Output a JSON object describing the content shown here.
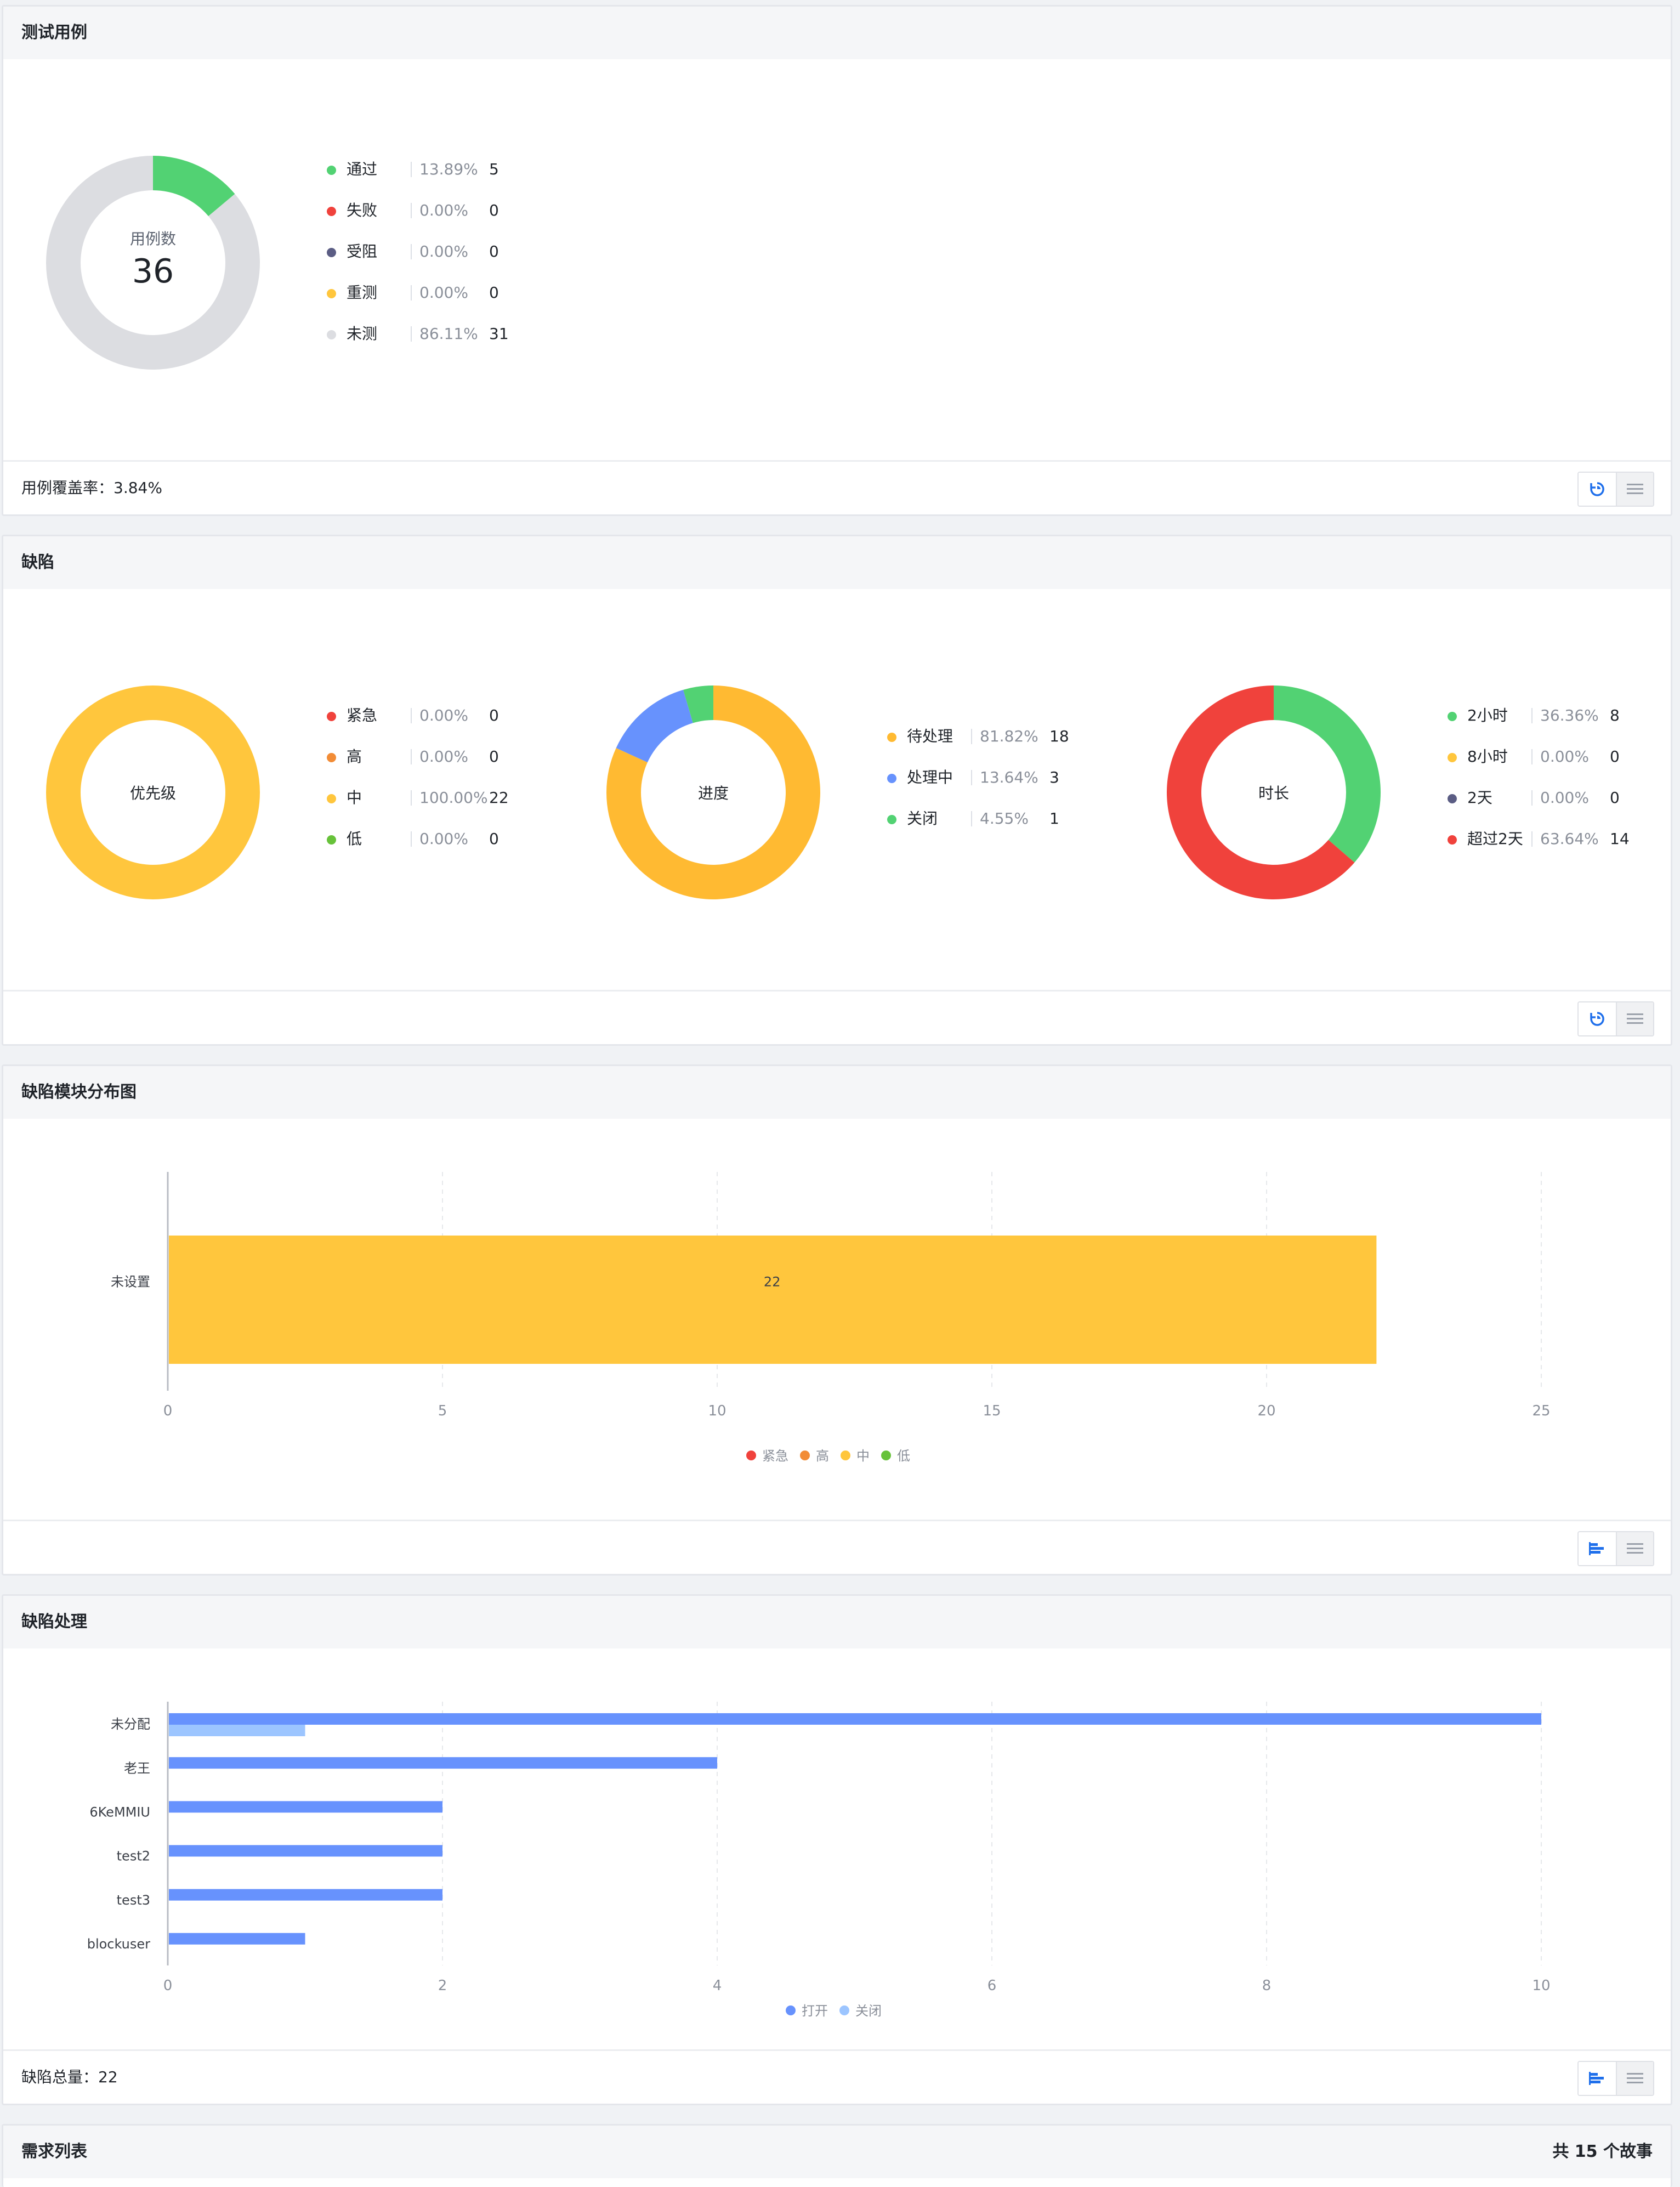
{
  "colors": {
    "green": "#52d273",
    "red": "#f0423c",
    "purple": "#5b5d84",
    "yellow": "#ffc63d",
    "grey": "#dcdde1",
    "orange": "#f28c36",
    "lime": "#67c23a",
    "blue": "#6792fd",
    "lightblue": "#9cc5ff",
    "accent": "#1f6feb"
  },
  "test_cases": {
    "title": "测试用例",
    "center_label": "用例数",
    "center_value": "36",
    "legend": [
      {
        "label": "通过",
        "pct": "13.89%",
        "count": "5",
        "color": "#52d273",
        "value": 5
      },
      {
        "label": "失败",
        "pct": "0.00%",
        "count": "0",
        "color": "#f0423c",
        "value": 0
      },
      {
        "label": "受阻",
        "pct": "0.00%",
        "count": "0",
        "color": "#5b5d84",
        "value": 0
      },
      {
        "label": "重测",
        "pct": "0.00%",
        "count": "0",
        "color": "#ffc63d",
        "value": 0
      },
      {
        "label": "未测",
        "pct": "86.11%",
        "count": "31",
        "color": "#dcdde1",
        "value": 31
      }
    ],
    "footer_text": "用例覆盖率：3.84%"
  },
  "defects": {
    "title": "缺陷",
    "priority": {
      "center_label": "优先级",
      "legend": [
        {
          "label": "紧急",
          "pct": "0.00%",
          "count": "0",
          "color": "#f0423c",
          "value": 0
        },
        {
          "label": "高",
          "pct": "0.00%",
          "count": "0",
          "color": "#f28c36",
          "value": 0
        },
        {
          "label": "中",
          "pct": "100.00%",
          "count": "22",
          "color": "#ffc63d",
          "value": 22
        },
        {
          "label": "低",
          "pct": "0.00%",
          "count": "0",
          "color": "#67c23a",
          "value": 0
        }
      ]
    },
    "progress": {
      "center_label": "进度",
      "legend": [
        {
          "label": "待处理",
          "pct": "81.82%",
          "count": "18",
          "color": "#ffba32",
          "value": 18
        },
        {
          "label": "处理中",
          "pct": "13.64%",
          "count": "3",
          "color": "#6792fd",
          "value": 3
        },
        {
          "label": "关闭",
          "pct": "4.55%",
          "count": "1",
          "color": "#52d273",
          "value": 1
        }
      ]
    },
    "duration": {
      "center_label": "时长",
      "legend": [
        {
          "label": "2小时",
          "pct": "36.36%",
          "count": "8",
          "color": "#52d273",
          "value": 8
        },
        {
          "label": "8小时",
          "pct": "0.00%",
          "count": "0",
          "color": "#ffc63d",
          "value": 0
        },
        {
          "label": "2天",
          "pct": "0.00%",
          "count": "0",
          "color": "#5b5d84",
          "value": 0
        },
        {
          "label": "超过2天",
          "pct": "63.64%",
          "count": "14",
          "color": "#f0423c",
          "value": 14
        }
      ]
    }
  },
  "module_chart": {
    "title": "缺陷模块分布图",
    "chart_data": {
      "type": "bar",
      "orientation": "horizontal",
      "categories": [
        "未设置"
      ],
      "series": [
        {
          "name": "紧急",
          "values": [
            0
          ],
          "color": "#f0423c"
        },
        {
          "name": "高",
          "values": [
            0
          ],
          "color": "#f28c36"
        },
        {
          "name": "中",
          "values": [
            22
          ],
          "color": "#ffc63d"
        },
        {
          "name": "低",
          "values": [
            0
          ],
          "color": "#67c23a"
        }
      ],
      "data_labels": [
        "22"
      ],
      "x_ticks": [
        "0",
        "5",
        "10",
        "15",
        "20",
        "25"
      ],
      "xlim": [
        0,
        25
      ],
      "grid": true,
      "legend_position": "bottom"
    }
  },
  "handling_chart": {
    "title": "缺陷处理",
    "chart_data": {
      "type": "bar",
      "orientation": "horizontal",
      "categories": [
        "未分配",
        "老王",
        "6KeMMIU",
        "test2",
        "test3",
        "blockuser"
      ],
      "series": [
        {
          "name": "打开",
          "values": [
            10,
            4,
            2,
            2,
            2,
            1
          ],
          "color": "#6792fd"
        },
        {
          "name": "关闭",
          "values": [
            1,
            0,
            0,
            0,
            0,
            0
          ],
          "color": "#9cc5ff"
        }
      ],
      "x_ticks": [
        "0",
        "2",
        "4",
        "6",
        "8",
        "10"
      ],
      "xlim": [
        0,
        10
      ],
      "grid": true,
      "legend_position": "bottom"
    },
    "footer_text": "缺陷总量：22"
  },
  "requirements": {
    "title": "需求列表",
    "count_text": "共 15 个故事"
  }
}
